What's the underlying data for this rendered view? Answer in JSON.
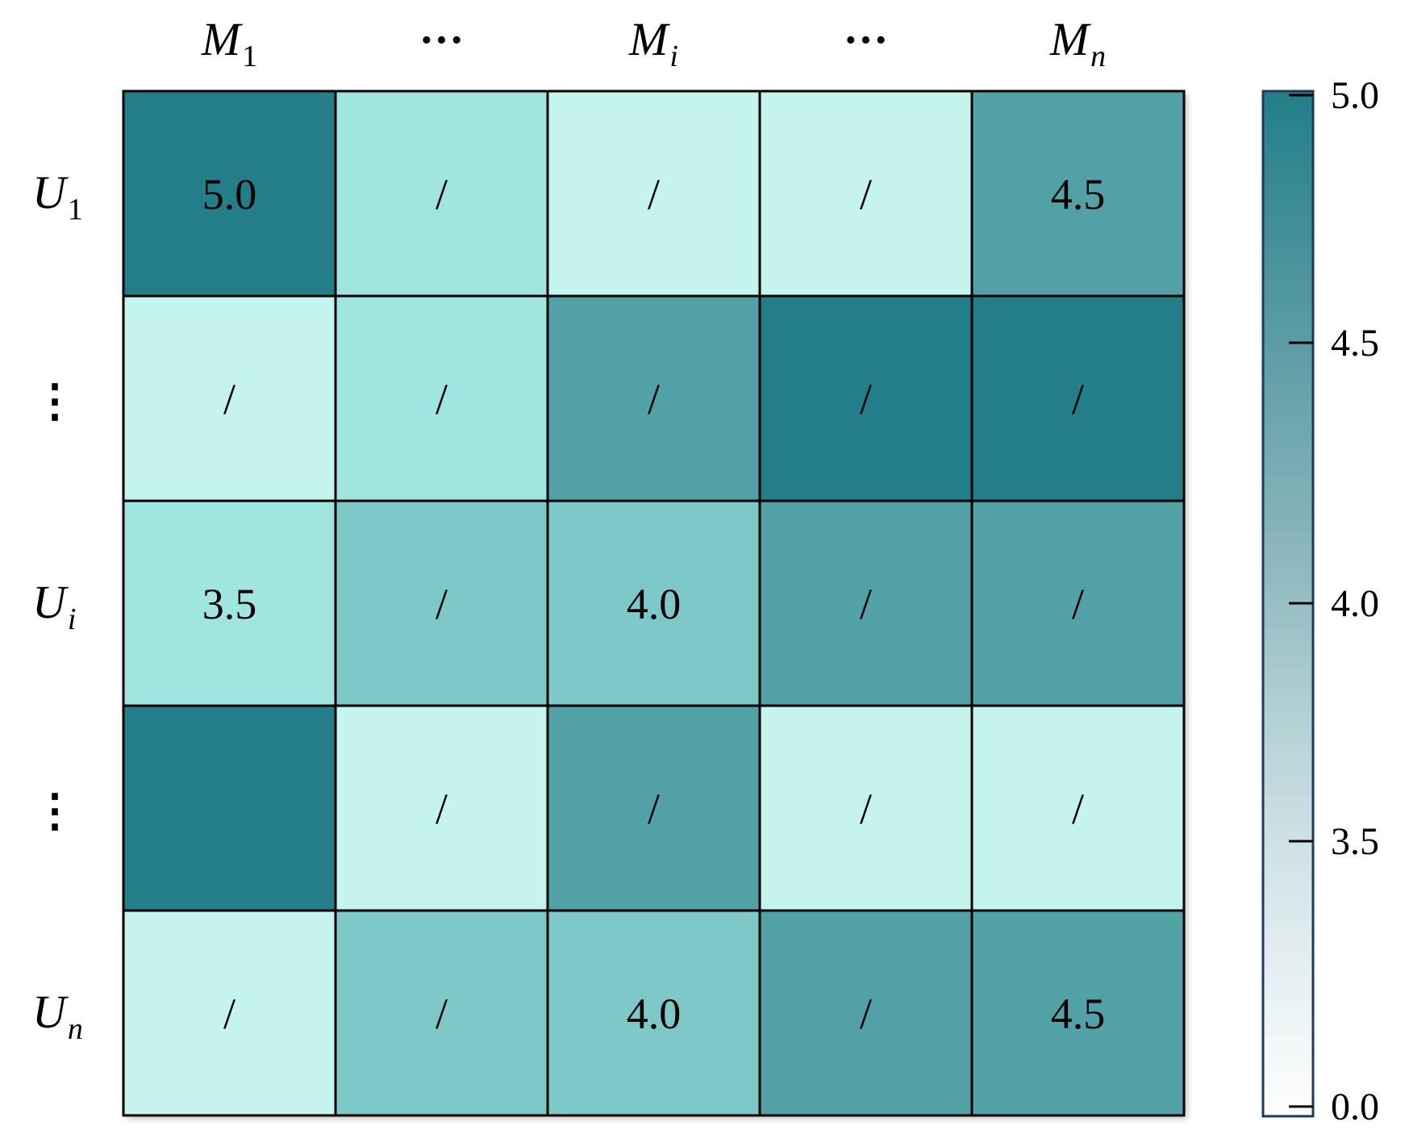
{
  "chart_data": {
    "type": "heatmap",
    "columns": [
      {
        "base": "M",
        "sub": "1",
        "sub_italic": false
      },
      {
        "text": "···"
      },
      {
        "base": "M",
        "sub": "i",
        "sub_italic": true
      },
      {
        "text": "···"
      },
      {
        "base": "M",
        "sub": "n",
        "sub_italic": true
      }
    ],
    "rows": [
      {
        "base": "U",
        "sub": "1",
        "sub_italic": false
      },
      {
        "text": "⋮"
      },
      {
        "base": "U",
        "sub": "i",
        "sub_italic": true
      },
      {
        "text": "⋮"
      },
      {
        "base": "U",
        "sub": "n",
        "sub_italic": true
      }
    ],
    "shade_levels": [
      [
        "#237e89",
        "#a0e5e0",
        "#c5f3ee",
        "#c5f3ee",
        "#52a1a7"
      ],
      [
        "#c5f3ee",
        "#a0e5e0",
        "#52a1a7",
        "#237e89",
        "#237e89"
      ],
      [
        "#a0e5e0",
        "#7fc8c8",
        "#7fc8c8",
        "#52a1a7",
        "#52a1a7"
      ],
      [
        "#237e89",
        "#c5f3ee",
        "#52a1a7",
        "#c5f3ee",
        "#c5f3ee"
      ],
      [
        "#c5f3ee",
        "#7fc8c8",
        "#7fc8c8",
        "#52a1a7",
        "#52a1a7"
      ]
    ],
    "cell_labels": [
      [
        "5.0",
        "/",
        "/",
        "/",
        "4.5"
      ],
      [
        "/",
        "/",
        "/",
        "/",
        "/"
      ],
      [
        "3.5",
        "/",
        "4.0",
        "/",
        "/"
      ],
      [
        "",
        "/",
        "/",
        "/",
        "/"
      ],
      [
        "/",
        "/",
        "4.0",
        "/",
        "4.5"
      ]
    ],
    "colorbar": {
      "ticks": [
        {
          "value": 5.0,
          "label": "5.0"
        },
        {
          "value": 4.5,
          "label": "4.5"
        },
        {
          "value": 4.0,
          "label": "4.0"
        },
        {
          "value": 3.5,
          "label": "3.5"
        },
        {
          "value": 0.0,
          "label": "0.0"
        }
      ],
      "color_top": "#237e89",
      "color_bottom": "#ffffff"
    }
  }
}
